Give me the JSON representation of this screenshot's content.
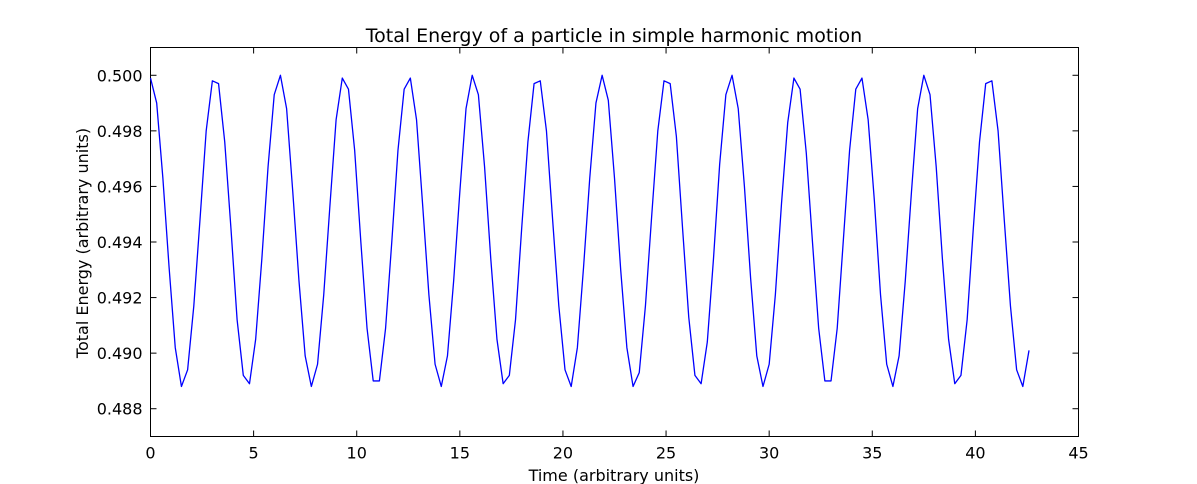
{
  "chart_data": {
    "type": "line",
    "title": "Total Energy of a particle in simple harmonic motion",
    "xlabel": "Time (arbitrary units)",
    "ylabel": "Total Energy (arbitrary units)",
    "xlim": [
      0,
      45
    ],
    "ylim": [
      0.487,
      0.501
    ],
    "xticks": [
      0,
      5,
      10,
      15,
      20,
      25,
      30,
      35,
      40,
      45
    ],
    "xtick_labels": [
      "0",
      "5",
      "10",
      "15",
      "20",
      "25",
      "30",
      "35",
      "40",
      "45"
    ],
    "yticks": [
      0.488,
      0.49,
      0.492,
      0.494,
      0.496,
      0.498,
      0.5
    ],
    "ytick_labels": [
      "0.488",
      "0.490",
      "0.492",
      "0.494",
      "0.496",
      "0.498",
      "0.500"
    ],
    "grid": false,
    "series": [
      {
        "color": "#0000ff",
        "x": [
          0.0,
          0.3,
          0.6,
          0.9,
          1.2,
          1.5,
          1.8,
          2.1,
          2.4,
          2.7,
          3.0,
          3.3,
          3.6,
          3.9,
          4.2,
          4.5,
          4.8,
          5.1,
          5.4,
          5.7,
          6.0,
          6.3,
          6.6,
          6.9,
          7.2,
          7.5,
          7.8,
          8.1,
          8.4,
          8.7,
          9.0,
          9.3,
          9.6,
          9.9,
          10.2,
          10.5,
          10.8,
          11.1,
          11.4,
          11.7,
          12.0,
          12.3,
          12.6,
          12.9,
          13.2,
          13.5,
          13.8,
          14.1,
          14.4,
          14.7,
          15.0,
          15.3,
          15.6,
          15.9,
          16.2,
          16.5,
          16.8,
          17.1,
          17.4,
          17.7,
          18.0,
          18.3,
          18.6,
          18.9,
          19.2,
          19.5,
          19.8,
          20.1,
          20.4,
          20.7,
          21.0,
          21.3,
          21.6,
          21.9,
          22.2,
          22.5,
          22.8,
          23.1,
          23.4,
          23.7,
          24.0,
          24.3,
          24.6,
          24.9,
          25.2,
          25.5,
          25.8,
          26.1,
          26.4,
          26.7,
          27.0,
          27.3,
          27.6,
          27.9,
          28.2,
          28.5,
          28.8,
          29.1,
          29.4,
          29.7,
          30.0,
          30.3,
          30.6,
          30.9,
          31.2,
          31.5,
          31.8,
          32.1,
          32.4,
          32.7,
          33.0,
          33.3,
          33.6,
          33.9,
          34.2,
          34.5,
          34.8,
          35.1,
          35.4,
          35.7,
          36.0,
          36.3,
          36.6,
          36.9,
          37.2,
          37.5,
          37.8,
          38.1,
          38.4,
          38.7,
          39.0,
          39.3,
          39.6,
          39.9,
          40.2,
          40.5,
          40.8,
          41.1,
          41.4,
          41.7,
          42.0,
          42.3,
          42.6
        ],
        "y": [
          0.4999,
          0.499,
          0.4963,
          0.4931,
          0.4902,
          0.4888,
          0.4894,
          0.4917,
          0.4948,
          0.498,
          0.4998,
          0.4997,
          0.4976,
          0.4945,
          0.4912,
          0.4892,
          0.4889,
          0.4905,
          0.4934,
          0.4967,
          0.4993,
          0.5,
          0.4988,
          0.4958,
          0.4926,
          0.4899,
          0.4888,
          0.4896,
          0.4921,
          0.4953,
          0.4984,
          0.4999,
          0.4995,
          0.4973,
          0.494,
          0.4909,
          0.489,
          0.489,
          0.4909,
          0.494,
          0.4973,
          0.4995,
          0.4999,
          0.4984,
          0.4953,
          0.4921,
          0.4896,
          0.4888,
          0.4899,
          0.4926,
          0.4958,
          0.4988,
          0.5,
          0.4993,
          0.4967,
          0.4934,
          0.4905,
          0.4889,
          0.4892,
          0.4912,
          0.4945,
          0.4976,
          0.4997,
          0.4998,
          0.498,
          0.4948,
          0.4917,
          0.4894,
          0.4888,
          0.4902,
          0.4931,
          0.4963,
          0.499,
          0.5,
          0.4991,
          0.4963,
          0.493,
          0.4902,
          0.4888,
          0.4893,
          0.4917,
          0.4949,
          0.498,
          0.4998,
          0.4997,
          0.4978,
          0.4945,
          0.4913,
          0.4892,
          0.4889,
          0.4904,
          0.4934,
          0.4968,
          0.4993,
          0.5,
          0.4988,
          0.496,
          0.4927,
          0.4899,
          0.4888,
          0.4896,
          0.4921,
          0.4954,
          0.4983,
          0.4999,
          0.4995,
          0.4972,
          0.494,
          0.4909,
          0.489,
          0.489,
          0.4909,
          0.4941,
          0.4973,
          0.4995,
          0.4999,
          0.4984,
          0.4955,
          0.4921,
          0.4896,
          0.4888,
          0.4899,
          0.4926,
          0.4958,
          0.4988,
          0.5,
          0.4993,
          0.4967,
          0.4934,
          0.4905,
          0.4889,
          0.4892,
          0.4912,
          0.4945,
          0.4976,
          0.4997,
          0.4998,
          0.498,
          0.4948,
          0.4917,
          0.4894,
          0.4888,
          0.4901
        ]
      }
    ]
  }
}
